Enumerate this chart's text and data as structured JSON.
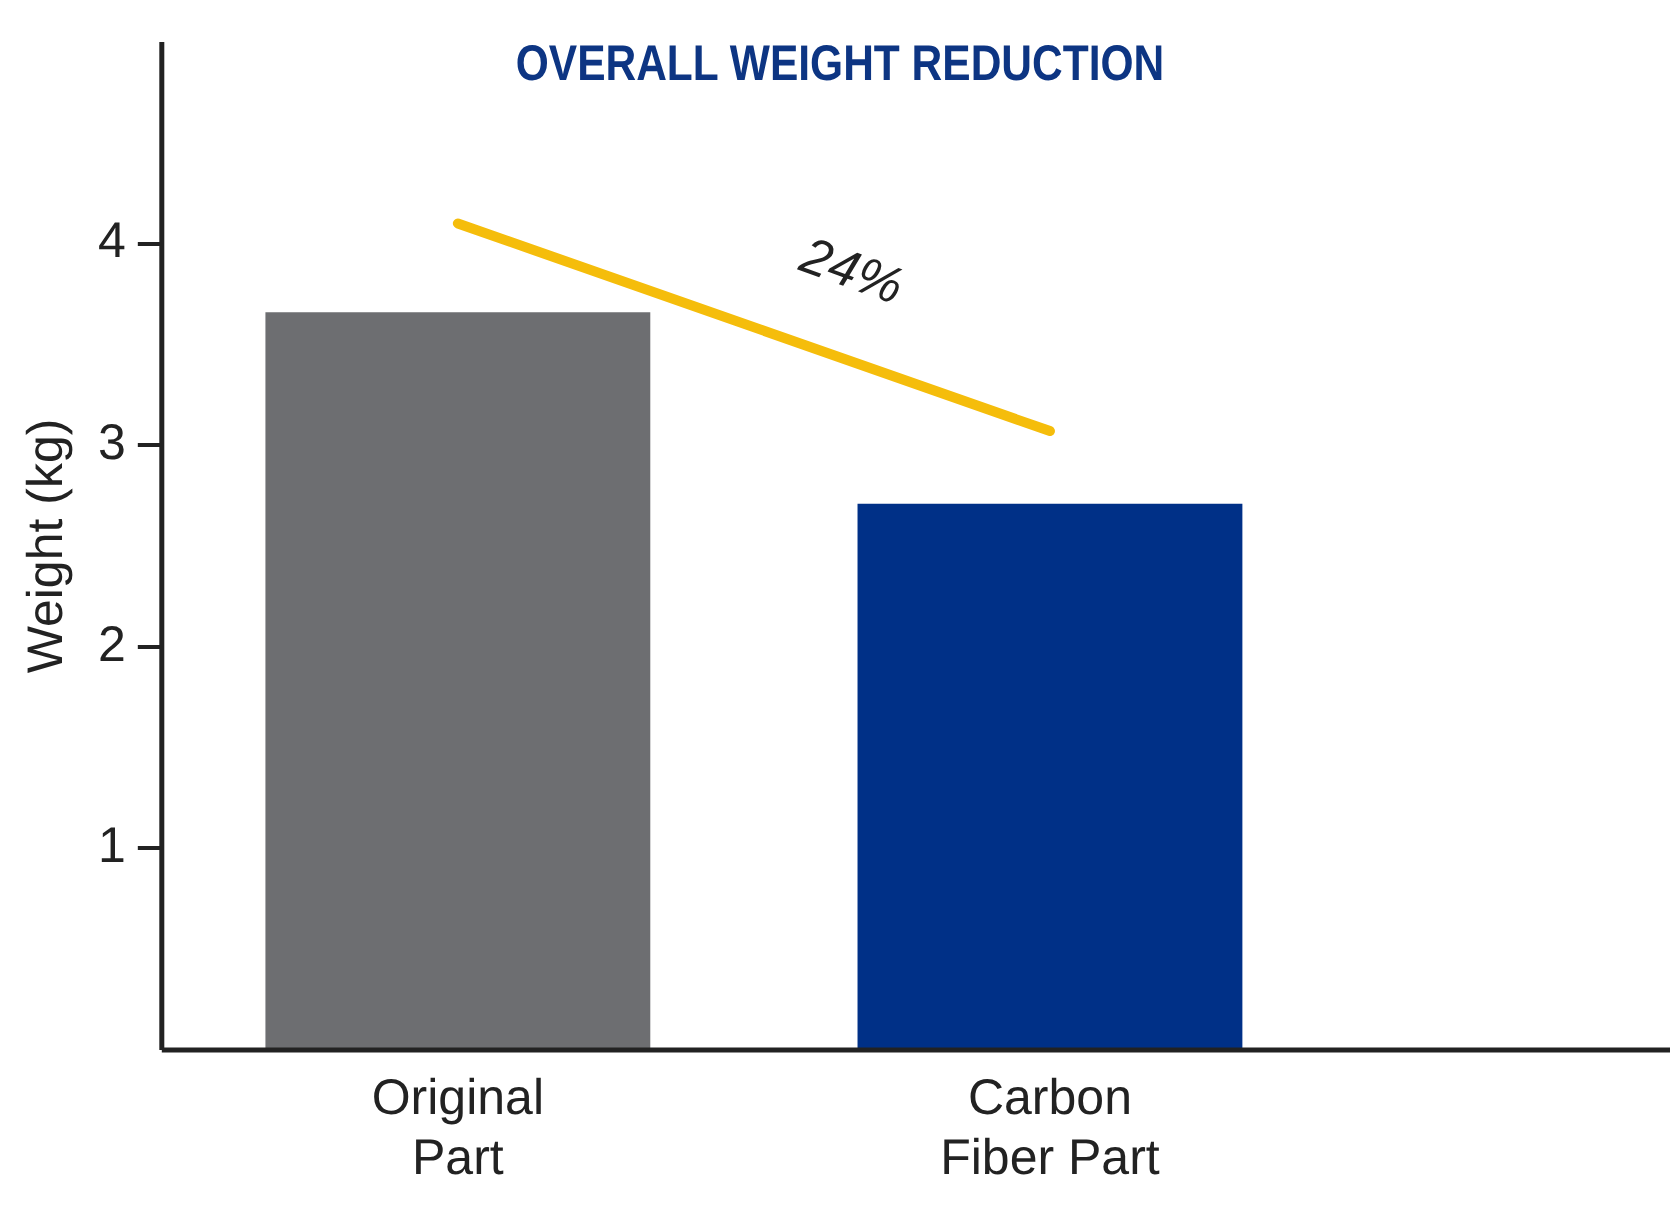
{
  "chart_data": {
    "type": "bar",
    "title": "OVERALL WEIGHT REDUCTION",
    "ylabel": "Weight (kg)",
    "categories": [
      "Original\nPart",
      "Carbon\nFiber Part"
    ],
    "series": [
      {
        "values": [
          3.66,
          2.71
        ],
        "colors": [
          "#6d6e71",
          "#003087"
        ]
      },
      {
        "type": "line",
        "color": "#f5bd0b",
        "values": [
          4.1,
          3.07
        ]
      }
    ],
    "ylim": [
      0,
      5
    ],
    "yticks": [
      1,
      2,
      3,
      4
    ],
    "grid": false,
    "legend": false,
    "marker": "none",
    "annotations": [
      "24%"
    ]
  }
}
